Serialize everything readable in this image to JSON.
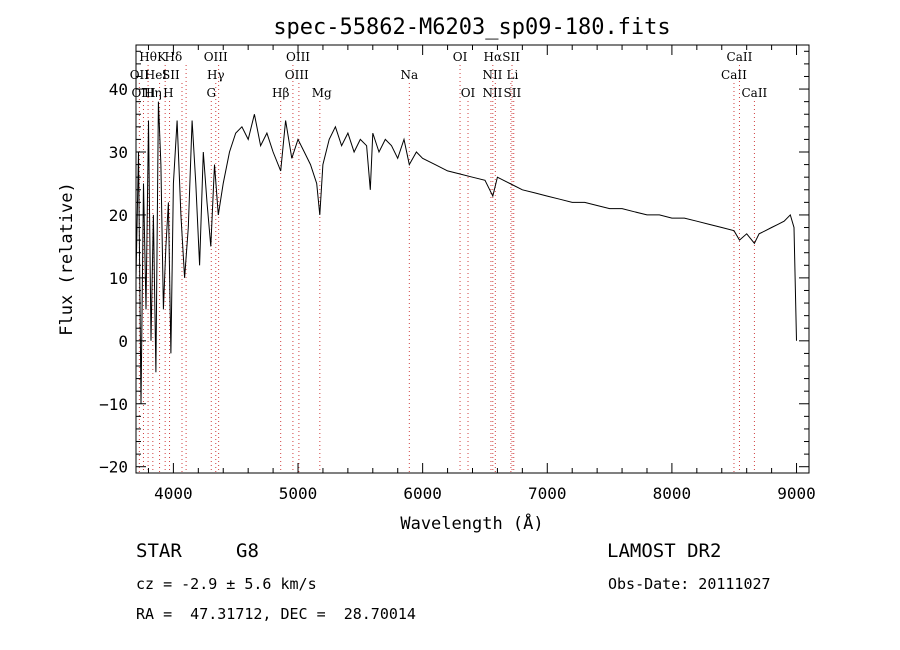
{
  "chart_data": {
    "type": "line",
    "title": "spec-55862-M6203_sp09-180.fits",
    "xlabel": "Wavelength (Å)",
    "ylabel": "Flux (relative)",
    "xlim": [
      3700,
      9100
    ],
    "ylim": [
      -21,
      47
    ],
    "xticks": [
      4000,
      5000,
      6000,
      7000,
      8000,
      9000
    ],
    "yticks": [
      -20,
      -10,
      0,
      10,
      20,
      30,
      40
    ],
    "spectrum": {
      "x": [
        3700,
        3720,
        3740,
        3760,
        3780,
        3800,
        3820,
        3840,
        3860,
        3880,
        3900,
        3920,
        3940,
        3960,
        3980,
        4000,
        4030,
        4060,
        4090,
        4120,
        4150,
        4180,
        4210,
        4240,
        4270,
        4300,
        4330,
        4360,
        4400,
        4450,
        4500,
        4550,
        4600,
        4650,
        4700,
        4750,
        4800,
        4861,
        4900,
        4950,
        5000,
        5050,
        5100,
        5150,
        5175,
        5200,
        5250,
        5300,
        5350,
        5400,
        5450,
        5500,
        5550,
        5580,
        5600,
        5650,
        5700,
        5750,
        5800,
        5850,
        5893,
        5950,
        6000,
        6100,
        6200,
        6300,
        6400,
        6500,
        6563,
        6600,
        6700,
        6800,
        6900,
        7000,
        7100,
        7200,
        7300,
        7400,
        7500,
        7600,
        7700,
        7800,
        7900,
        8000,
        8100,
        8200,
        8300,
        8400,
        8498,
        8542,
        8600,
        8662,
        8700,
        8750,
        8800,
        8850,
        8900,
        8950,
        8980,
        9000
      ],
      "y": [
        10,
        30,
        -10,
        25,
        5,
        35,
        0,
        20,
        -5,
        38,
        28,
        5,
        15,
        22,
        -2,
        25,
        35,
        20,
        10,
        18,
        35,
        25,
        12,
        30,
        22,
        15,
        28,
        20,
        25,
        30,
        33,
        34,
        32,
        36,
        31,
        33,
        30,
        27,
        35,
        29,
        32,
        30,
        28,
        25,
        20,
        28,
        32,
        34,
        31,
        33,
        30,
        32,
        31,
        24,
        33,
        30,
        32,
        31,
        29,
        32,
        28,
        30,
        29,
        28,
        27,
        26.5,
        26,
        25.5,
        23,
        26,
        25,
        24,
        23.5,
        23,
        22.5,
        22,
        22,
        21.5,
        21,
        21,
        20.5,
        20,
        20,
        19.5,
        19.5,
        19,
        18.5,
        18,
        17.5,
        16,
        17,
        15.5,
        17,
        17.5,
        18,
        18.5,
        19,
        20,
        18,
        0
      ]
    },
    "line_markers": [
      {
        "label": "Hθ",
        "x": 3797,
        "row": 1,
        "label_x": 3797
      },
      {
        "label": "K",
        "x": 3934,
        "row": 1,
        "label_x": 3905
      },
      {
        "label": "Hδ",
        "x": 4102,
        "row": 1,
        "label_x": 4000
      },
      {
        "label": "OIII",
        "x": 4363,
        "row": 1,
        "label_x": 4340
      },
      {
        "label": "OIII",
        "x": 4959,
        "row": 1,
        "label_x": 5000
      },
      {
        "label": "OI",
        "x": 6300,
        "row": 1,
        "label_x": 6300
      },
      {
        "label": "Hα",
        "x": 6563,
        "row": 1,
        "label_x": 6563
      },
      {
        "label": "SII",
        "x": 6717,
        "row": 1,
        "label_x": 6710
      },
      {
        "label": "CaII",
        "x": 8542,
        "row": 1,
        "label_x": 8542
      },
      {
        "label": "OII",
        "x": 3727,
        "row": 2,
        "label_x": 3727
      },
      {
        "label": "HeI",
        "x": 3889,
        "row": 2,
        "label_x": 3860
      },
      {
        "label": "SII",
        "x": 4069,
        "row": 2,
        "label_x": 3980
      },
      {
        "label": "Hγ",
        "x": 4340,
        "row": 2,
        "label_x": 4340
      },
      {
        "label": "OIII",
        "x": 5007,
        "row": 2,
        "label_x": 4990
      },
      {
        "label": "Na",
        "x": 5893,
        "row": 2,
        "label_x": 5893
      },
      {
        "label": "NII",
        "x": 6583,
        "row": 2,
        "label_x": 6560
      },
      {
        "label": "Li",
        "x": 6708,
        "row": 2,
        "label_x": 6720
      },
      {
        "label": "CaII",
        "x": 8498,
        "row": 2,
        "label_x": 8498
      },
      {
        "label": "OIII",
        "x": 3760,
        "row": 3,
        "label_x": 3760
      },
      {
        "label": "Hη",
        "x": 3835,
        "row": 3,
        "label_x": 3835
      },
      {
        "label": "H",
        "x": 3969,
        "row": 3,
        "label_x": 3960
      },
      {
        "label": "G",
        "x": 4304,
        "row": 3,
        "label_x": 4304
      },
      {
        "label": "Hβ",
        "x": 4861,
        "row": 3,
        "label_x": 4861
      },
      {
        "label": "Mg",
        "x": 5175,
        "row": 3,
        "label_x": 5190
      },
      {
        "label": "OI",
        "x": 6364,
        "row": 3,
        "label_x": 6364
      },
      {
        "label": "NII",
        "x": 6548,
        "row": 3,
        "label_x": 6560
      },
      {
        "label": "SII",
        "x": 6731,
        "row": 3,
        "label_x": 6720
      },
      {
        "label": "CaII",
        "x": 8662,
        "row": 3,
        "label_x": 8662
      }
    ],
    "grid": false,
    "legend": "none"
  },
  "info": {
    "class": "STAR",
    "subclass": "G8",
    "survey": "LAMOST DR2",
    "cz": "cz = -2.9 ± 5.6 km/s",
    "obs_date": "Obs-Date: 20111027",
    "coords": "RA =  47.31712, DEC =  28.70014"
  },
  "colors": {
    "axis": "#000000",
    "spectrum": "#000000",
    "marker": "#d04040"
  }
}
